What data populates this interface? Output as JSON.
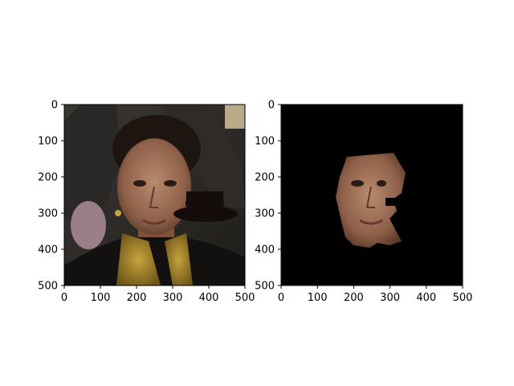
{
  "chart_data": [
    {
      "type": "image",
      "title": "",
      "content": "photo of a woman's face partially covered by a dark bowler-hat shaped occluder",
      "xlim": [
        0,
        500
      ],
      "ylim": [
        500,
        0
      ],
      "x_ticks": [
        0,
        100,
        200,
        300,
        400,
        500
      ],
      "y_ticks": [
        0,
        100,
        200,
        300,
        400,
        500
      ],
      "x_tick_labels": [
        "0",
        "100",
        "200",
        "300",
        "400",
        "500"
      ],
      "y_tick_labels": [
        "0",
        "100",
        "200",
        "300",
        "400",
        "500"
      ]
    },
    {
      "type": "image",
      "title": "",
      "content": "segmented face region on black background with occluded area removed",
      "xlim": [
        0,
        500
      ],
      "ylim": [
        500,
        0
      ],
      "x_ticks": [
        0,
        100,
        200,
        300,
        400,
        500
      ],
      "y_ticks": [
        0,
        100,
        200,
        300,
        400,
        500
      ],
      "x_tick_labels": [
        "0",
        "100",
        "200",
        "300",
        "400",
        "500"
      ],
      "y_tick_labels": [
        "0",
        "100",
        "200",
        "300",
        "400",
        "500"
      ]
    }
  ]
}
